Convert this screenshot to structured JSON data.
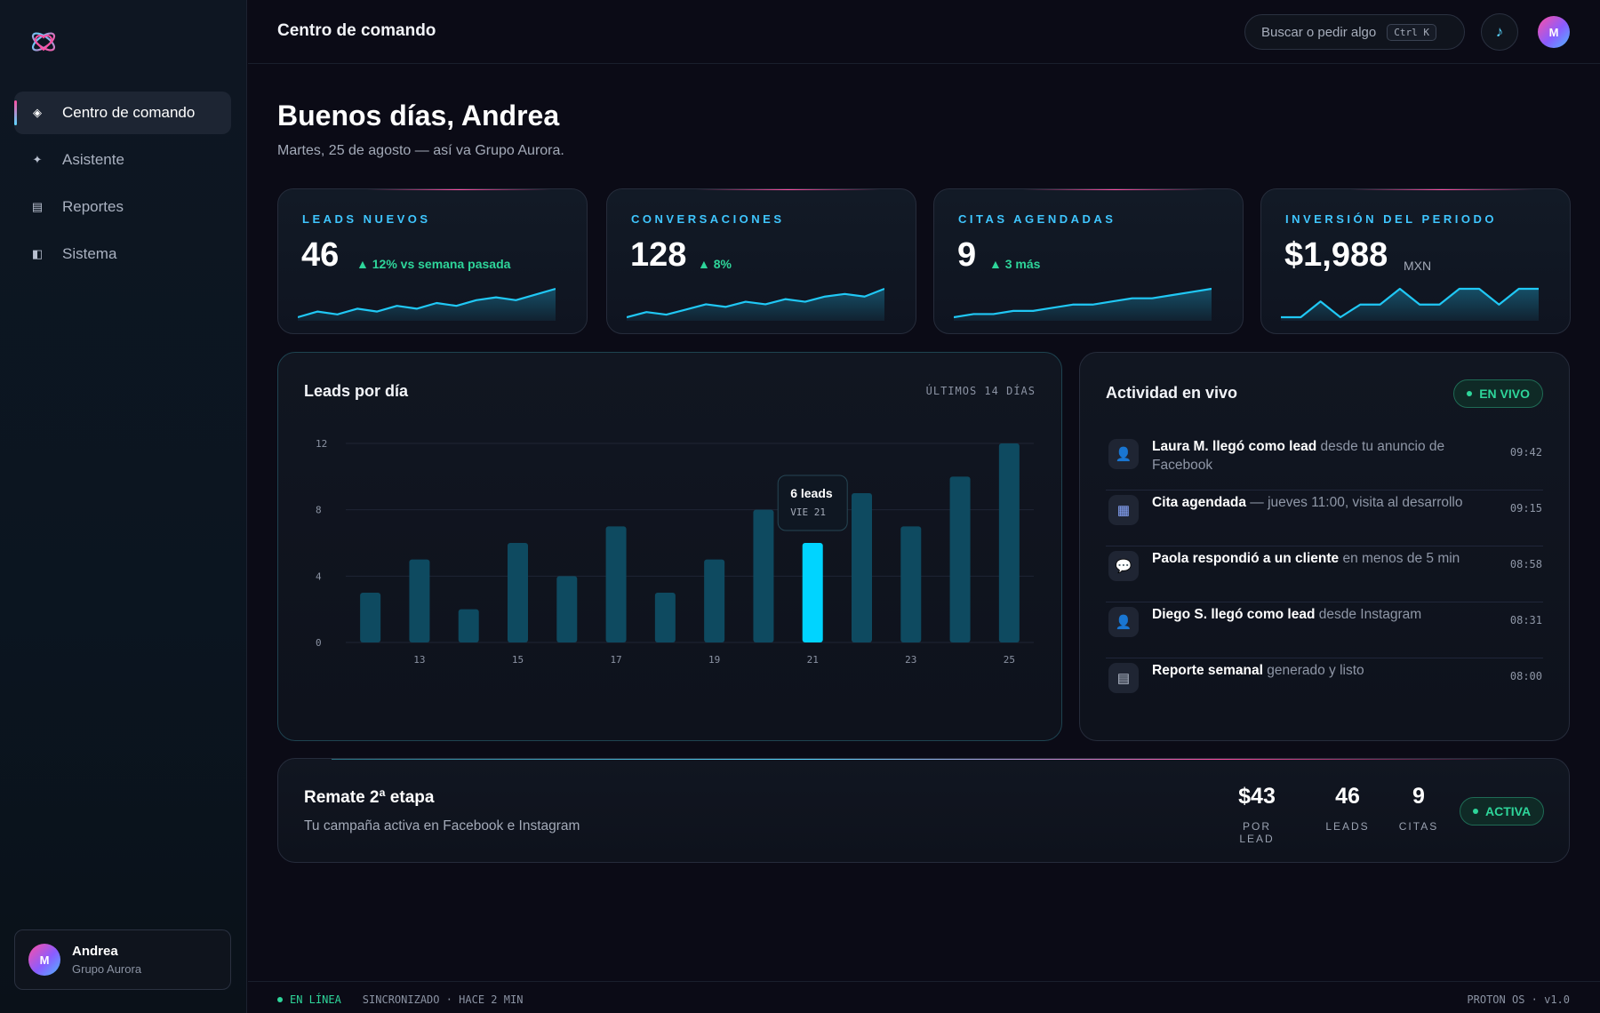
{
  "app": {
    "logo": "atom-heart-logo"
  },
  "sidebar": {
    "items": [
      {
        "label": "Centro de comando",
        "icon": "diamond-icon",
        "glyph": "◈"
      },
      {
        "label": "Asistente",
        "icon": "sparkle-icon",
        "glyph": "✦"
      },
      {
        "label": "Reportes",
        "icon": "report-icon",
        "glyph": "▤"
      },
      {
        "label": "Sistema",
        "icon": "system-icon",
        "glyph": "◧"
      }
    ],
    "user": {
      "initial": "M",
      "name": "Andrea",
      "org": "Grupo Aurora"
    }
  },
  "topbar": {
    "title": "Centro de comando",
    "search_placeholder": "Buscar o pedir algo",
    "shortcut": "Ctrl K",
    "music_glyph": "♪",
    "avatar_initial": "M"
  },
  "greeting": {
    "title": "Buenos días, Andrea",
    "subtitle": "Martes, 25 de agosto — así va Grupo Aurora."
  },
  "kpis": [
    {
      "label": "LEADS NUEVOS",
      "value": "46",
      "delta": "▲ 12% vs semana pasada",
      "unit": "",
      "spark": [
        3,
        5,
        4,
        6,
        5,
        7,
        6,
        8,
        7,
        9,
        10,
        9,
        11,
        13
      ]
    },
    {
      "label": "CONVERSACIONES",
      "value": "128",
      "delta": "▲ 8%",
      "unit": "",
      "spark": [
        3,
        5,
        4,
        6,
        8,
        7,
        9,
        8,
        10,
        9,
        11,
        12,
        11,
        14
      ]
    },
    {
      "label": "CITAS AGENDADAS",
      "value": "9",
      "delta": "▲ 3 más",
      "unit": "",
      "spark": [
        2,
        3,
        3,
        4,
        4,
        5,
        6,
        6,
        7,
        8,
        8,
        9,
        10,
        11
      ]
    },
    {
      "label": "INVERSIÓN DEL PERIODO",
      "value": "$1,988",
      "delta": "",
      "unit": "MXN",
      "spark": [
        3,
        3,
        8,
        3,
        7,
        7,
        12,
        7,
        7,
        12,
        12,
        7,
        12,
        12
      ]
    }
  ],
  "chart_panel": {
    "title": "Leads por día",
    "range_label": "ÚLTIMOS 14 DÍAS"
  },
  "chart_data": {
    "type": "bar",
    "title": "Leads por día",
    "categories": [
      "12",
      "13",
      "14",
      "15",
      "16",
      "17",
      "18",
      "19",
      "20",
      "21",
      "22",
      "23",
      "24",
      "25"
    ],
    "x_tick_labels": [
      "13",
      "15",
      "17",
      "19",
      "21",
      "23",
      "25"
    ],
    "values": [
      3,
      5,
      2,
      6,
      4,
      7,
      3,
      5,
      8,
      6,
      9,
      7,
      10,
      12
    ],
    "ylim": [
      0,
      12
    ],
    "y_ticks": [
      0,
      4,
      8,
      12
    ],
    "highlight_index": 9,
    "tooltip": {
      "value": "6 leads",
      "label": "VIE 21"
    },
    "colors": {
      "bar": "#0e4a60",
      "highlight": "#00d4ff"
    },
    "grid": true
  },
  "activity": {
    "title": "Actividad en vivo",
    "badge": "EN VIVO",
    "items": [
      {
        "icon": "person-icon",
        "glyph": "👤",
        "strong": "Laura M. llegó como lead",
        "rest": " desde tu anuncio de Facebook",
        "time": "09:42"
      },
      {
        "icon": "calendar-icon",
        "glyph": "▦",
        "strong": "Cita agendada",
        "rest": " — jueves 11:00, visita al desarrollo",
        "time": "09:15"
      },
      {
        "icon": "chat-icon",
        "glyph": "💬",
        "strong": "Paola respondió a un cliente",
        "rest": " en menos de 5 min",
        "time": "08:58"
      },
      {
        "icon": "person-icon",
        "glyph": "👤",
        "strong": "Diego S. llegó como lead",
        "rest": " desde Instagram",
        "time": "08:31"
      },
      {
        "icon": "document-icon",
        "glyph": "▤",
        "strong": "Reporte semanal",
        "rest": " generado y listo",
        "time": "08:00"
      }
    ]
  },
  "campaign": {
    "title": "Remate 2ª etapa",
    "subtitle": "Tu campaña activa en Facebook e Instagram",
    "stats": [
      {
        "value": "$43",
        "label": "POR LEAD"
      },
      {
        "value": "46",
        "label": "LEADS"
      },
      {
        "value": "9",
        "label": "CITAS"
      }
    ],
    "status": "ACTIVA"
  },
  "footer": {
    "online": "EN LÍNEA",
    "sync": "SINCRONIZADO · HACE 2 MIN",
    "version": "PROTON OS · v1.0"
  }
}
